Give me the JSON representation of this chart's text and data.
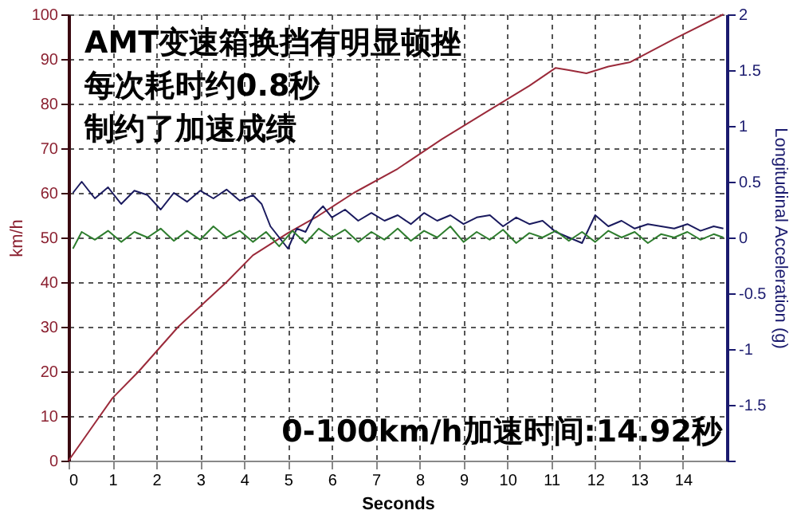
{
  "chart_data": {
    "type": "line",
    "xlabel": "Seconds",
    "ylabel": "km/h",
    "y2label": "Longitudinal Acceleration (g)",
    "annotations": [
      "AMT变速箱换挡有明显顿挫",
      "每次耗时约0.8秒",
      "制约了加速成绩",
      "0-100km/h加速时间:14.92秒"
    ],
    "xlim": [
      0,
      15
    ],
    "xticks": [
      0,
      1,
      2,
      3,
      4,
      5,
      6,
      7,
      8,
      9,
      10,
      11,
      12,
      13,
      14
    ],
    "ylim": [
      0,
      100
    ],
    "yticks": [
      0,
      10,
      20,
      30,
      40,
      50,
      60,
      70,
      80,
      90,
      100
    ],
    "y2lim": [
      -2,
      2
    ],
    "y2ticks": [
      {
        "value": -2,
        "label": null
      },
      -1.5,
      -1,
      -0.5,
      0,
      0.5,
      1,
      1.5,
      2
    ],
    "grid": true,
    "line_style": "solid",
    "marker": "none",
    "series": [
      {
        "color": "#9b2a3a",
        "x": [
          0,
          0.5,
          1,
          1.6,
          2.5,
          3.6,
          4.2,
          4.6,
          5.0,
          5.65,
          6.5,
          7.5,
          8.5,
          9.5,
          10.5,
          11.1,
          11.4,
          11.8,
          12.3,
          12.8,
          13.8,
          14.92
        ],
        "values": [
          0,
          7,
          14,
          20,
          30,
          40,
          46,
          48.5,
          51,
          54.6,
          60,
          65.4,
          72,
          78,
          84,
          88,
          87.5,
          86.8,
          88.3,
          89.3,
          94.5,
          100
        ]
      },
      {
        "color": "#1a1a5e",
        "axis": "y2",
        "x": [
          0.1,
          0.3,
          0.6,
          0.9,
          1.2,
          1.5,
          1.8,
          2.1,
          2.4,
          2.7,
          3.0,
          3.3,
          3.6,
          3.9,
          4.2,
          4.4,
          4.6,
          4.8,
          5.0,
          5.2,
          5.4,
          5.6,
          5.8,
          6.0,
          6.3,
          6.6,
          6.9,
          7.2,
          7.5,
          7.8,
          8.1,
          8.4,
          8.7,
          9.0,
          9.3,
          9.6,
          9.9,
          10.2,
          10.5,
          10.8,
          11.1,
          11.4,
          11.7,
          12.0,
          12.3,
          12.6,
          12.9,
          13.2,
          13.5,
          13.8,
          14.1,
          14.4,
          14.7,
          14.92
        ],
        "values": [
          0.4,
          0.5,
          0.35,
          0.45,
          0.3,
          0.42,
          0.38,
          0.25,
          0.4,
          0.32,
          0.42,
          0.35,
          0.43,
          0.33,
          0.38,
          0.3,
          0.1,
          0.0,
          -0.1,
          0.08,
          0.05,
          0.2,
          0.28,
          0.18,
          0.25,
          0.15,
          0.22,
          0.15,
          0.2,
          0.12,
          0.22,
          0.15,
          0.2,
          0.12,
          0.18,
          0.2,
          0.1,
          0.18,
          0.12,
          0.15,
          0.05,
          0.0,
          -0.05,
          0.2,
          0.1,
          0.15,
          0.08,
          0.12,
          0.1,
          0.08,
          0.12,
          0.06,
          0.1,
          0.08
        ]
      },
      {
        "color": "#2e7d2e",
        "axis": "y2",
        "x": [
          0.1,
          0.3,
          0.6,
          0.9,
          1.2,
          1.5,
          1.8,
          2.1,
          2.4,
          2.7,
          3.0,
          3.3,
          3.6,
          3.9,
          4.2,
          4.5,
          4.8,
          5.1,
          5.4,
          5.7,
          6.0,
          6.3,
          6.6,
          6.9,
          7.2,
          7.5,
          7.8,
          8.1,
          8.4,
          8.7,
          9.0,
          9.3,
          9.6,
          9.9,
          10.2,
          10.5,
          10.8,
          11.1,
          11.4,
          11.7,
          12.0,
          12.3,
          12.6,
          12.9,
          13.2,
          13.5,
          13.8,
          14.1,
          14.4,
          14.7,
          14.92
        ],
        "values": [
          -0.1,
          0.05,
          -0.02,
          0.06,
          -0.04,
          0.05,
          0.0,
          0.08,
          -0.03,
          0.06,
          -0.02,
          0.1,
          0.0,
          0.06,
          -0.04,
          0.05,
          -0.08,
          0.06,
          -0.05,
          0.08,
          0.0,
          0.07,
          -0.04,
          0.05,
          -0.02,
          0.08,
          -0.03,
          0.06,
          0.0,
          0.1,
          -0.04,
          0.05,
          -0.02,
          0.07,
          -0.05,
          0.04,
          0.0,
          0.06,
          -0.03,
          0.05,
          -0.04,
          0.06,
          0.0,
          0.05,
          -0.05,
          0.03,
          0.0,
          0.05,
          -0.02,
          0.03,
          0.0
        ]
      }
    ]
  }
}
